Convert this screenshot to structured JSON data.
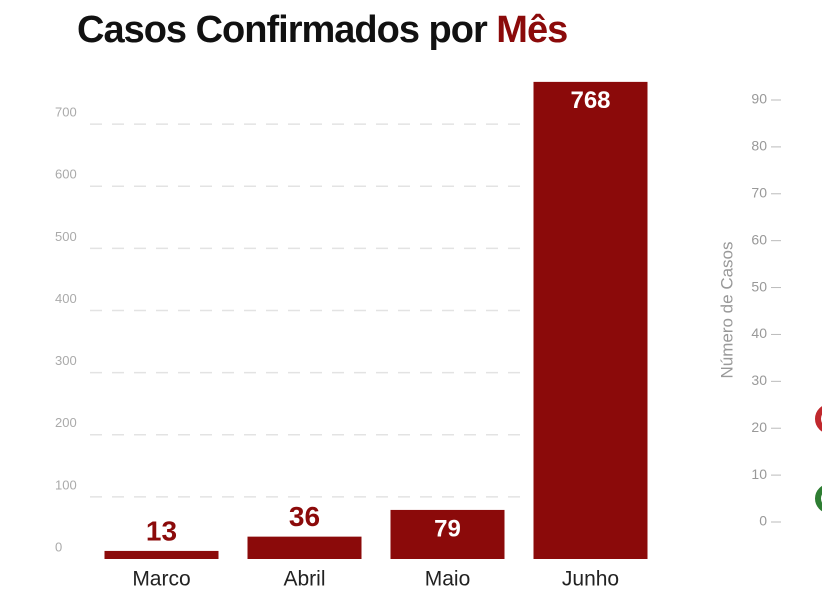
{
  "chart_data": [
    {
      "type": "bar",
      "title": "Casos Confirmados por",
      "title_highlight": "Mês",
      "categories": [
        "Marco",
        "Abril",
        "Maio",
        "Junho"
      ],
      "values": [
        13,
        36,
        79,
        768
      ],
      "color": "#8b0a0a",
      "ylim": [
        0,
        800
      ],
      "yticks": [
        0,
        100,
        200,
        300,
        400,
        500,
        600,
        700
      ],
      "grid": true
    },
    {
      "type": "scatter",
      "y_label": "Número de Casos",
      "ylim": [
        0,
        95
      ],
      "yticks": [
        0,
        10,
        20,
        30,
        40,
        50,
        60,
        70,
        80,
        90
      ],
      "series": [
        {
          "color": "#c0282d",
          "values": [
            22
          ]
        },
        {
          "color": "#2e7d32",
          "values": [
            5
          ]
        }
      ]
    }
  ]
}
